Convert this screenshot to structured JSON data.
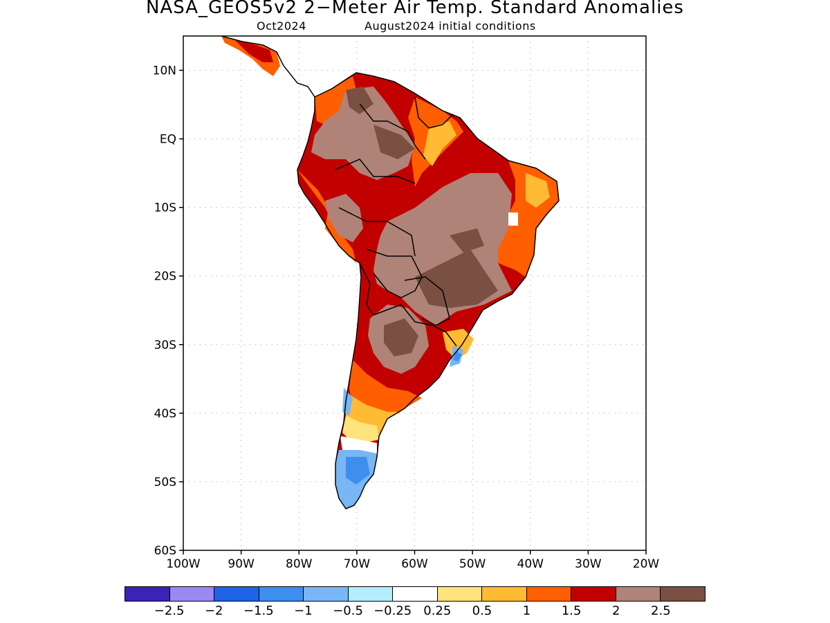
{
  "title": "NASA_GEOS5v2 2−Meter Air Temp. Standard Anomalies",
  "subtitle_left": "Oct2024",
  "subtitle_right": "August2024 initial conditions",
  "map": {
    "lon_range": [
      -100,
      -20
    ],
    "lat_range": [
      -60,
      15
    ],
    "lat_ticks": [
      "10N",
      "EQ",
      "10S",
      "20S",
      "30S",
      "40S",
      "50S",
      "60S"
    ],
    "lon_ticks": [
      "100W",
      "90W",
      "80W",
      "70W",
      "60W",
      "50W",
      "40W",
      "30W",
      "20W"
    ],
    "grid": "dotted"
  },
  "legend": {
    "colors": [
      "#3a23b5",
      "#9c88f2",
      "#1f63e6",
      "#3e8ef0",
      "#78b6f6",
      "#b3ecfa",
      "#ffffff",
      "#ffe37c",
      "#ffbb33",
      "#ff5f00",
      "#c20000",
      "#b08378",
      "#7a5042"
    ],
    "labels": [
      "−2.5",
      "−2",
      "−1.5",
      "−1",
      "−0.5",
      "−0.25",
      "0.25",
      "0.5",
      "1",
      "1.5",
      "2",
      "2.5"
    ]
  }
}
